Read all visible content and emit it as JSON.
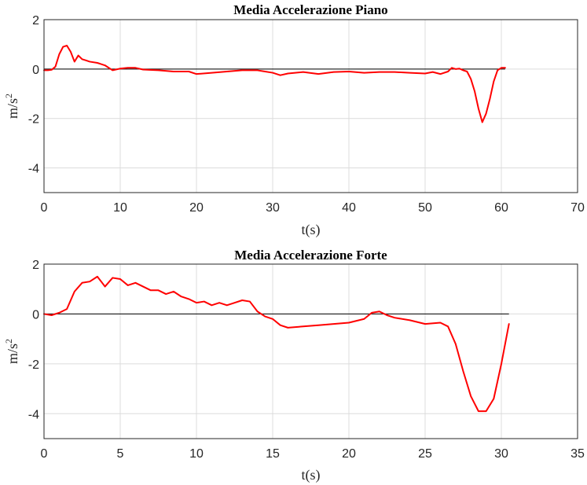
{
  "chart_data": [
    {
      "type": "line",
      "title": "Media Accelerazione Piano",
      "xlabel": "t(s)",
      "ylabel": "m/s",
      "ylabel_superscript": "2",
      "xlim": [
        0,
        70
      ],
      "ylim": [
        -5,
        2
      ],
      "xticks": [
        0,
        10,
        20,
        30,
        40,
        50,
        60,
        70
      ],
      "yticks": [
        -4,
        -2,
        0,
        2
      ],
      "grid": true,
      "reference_line": {
        "y": 0,
        "x_start": 0,
        "x_end": 60.5,
        "color": "#000000"
      },
      "series": [
        {
          "color": "#ff0000",
          "x": [
            0,
            0.5,
            1.0,
            1.5,
            2.0,
            2.5,
            3.0,
            3.5,
            4.0,
            4.5,
            5.0,
            5.5,
            6.0,
            7.0,
            8.0,
            9.0,
            10.0,
            11.0,
            12.0,
            13.0,
            15.0,
            17.0,
            19.0,
            20.0,
            22.0,
            24.0,
            26.0,
            27.0,
            28.0,
            29.0,
            30.0,
            31.0,
            32.0,
            34.0,
            36.0,
            38.0,
            40.0,
            42.0,
            44.0,
            46.0,
            48.0,
            50.0,
            51.0,
            52.0,
            53.0,
            53.5,
            54.0,
            54.5,
            55.0,
            55.5,
            56.0,
            56.5,
            57.0,
            57.5,
            58.0,
            58.5,
            59.0,
            59.5,
            60.0,
            60.5
          ],
          "y": [
            -0.05,
            -0.05,
            -0.03,
            0.1,
            0.6,
            0.9,
            0.95,
            0.7,
            0.3,
            0.55,
            0.4,
            0.35,
            0.3,
            0.25,
            0.15,
            -0.05,
            0.02,
            0.05,
            0.05,
            -0.02,
            -0.05,
            -0.1,
            -0.1,
            -0.2,
            -0.15,
            -0.1,
            -0.05,
            -0.05,
            -0.05,
            -0.1,
            -0.15,
            -0.25,
            -0.18,
            -0.12,
            -0.2,
            -0.12,
            -0.1,
            -0.15,
            -0.12,
            -0.12,
            -0.15,
            -0.18,
            -0.12,
            -0.2,
            -0.1,
            0.05,
            0.0,
            0.02,
            -0.05,
            -0.1,
            -0.4,
            -0.9,
            -1.6,
            -2.15,
            -1.8,
            -1.2,
            -0.5,
            -0.05,
            0.05,
            0.05
          ]
        }
      ]
    },
    {
      "type": "line",
      "title": "Media Accelerazione Forte",
      "xlabel": "t(s)",
      "ylabel": "m/s",
      "ylabel_superscript": "2",
      "xlim": [
        0,
        35
      ],
      "ylim": [
        -5,
        2
      ],
      "xticks": [
        0,
        5,
        10,
        15,
        20,
        25,
        30,
        35
      ],
      "yticks": [
        -4,
        -2,
        0,
        2
      ],
      "grid": true,
      "reference_line": {
        "y": 0,
        "x_start": 0,
        "x_end": 30.5,
        "color": "#000000"
      },
      "series": [
        {
          "color": "#ff0000",
          "x": [
            0,
            0.5,
            1.0,
            1.5,
            2.0,
            2.5,
            3.0,
            3.5,
            4.0,
            4.5,
            5.0,
            5.5,
            6.0,
            6.5,
            7.0,
            7.5,
            8.0,
            8.5,
            9.0,
            9.5,
            10.0,
            10.5,
            11.0,
            11.5,
            12.0,
            12.5,
            13.0,
            13.5,
            14.0,
            14.5,
            15.0,
            15.5,
            16.0,
            17.0,
            18.0,
            19.0,
            20.0,
            21.0,
            21.5,
            22.0,
            22.5,
            23.0,
            24.0,
            25.0,
            26.0,
            26.5,
            27.0,
            27.5,
            28.0,
            28.5,
            29.0,
            29.5,
            30.0,
            30.5
          ],
          "y": [
            0.0,
            -0.05,
            0.05,
            0.2,
            0.9,
            1.25,
            1.3,
            1.5,
            1.1,
            1.45,
            1.4,
            1.15,
            1.25,
            1.1,
            0.95,
            0.95,
            0.8,
            0.9,
            0.7,
            0.6,
            0.45,
            0.5,
            0.35,
            0.45,
            0.35,
            0.45,
            0.55,
            0.5,
            0.1,
            -0.1,
            -0.2,
            -0.45,
            -0.55,
            -0.5,
            -0.45,
            -0.4,
            -0.35,
            -0.2,
            0.05,
            0.1,
            -0.05,
            -0.15,
            -0.25,
            -0.4,
            -0.35,
            -0.5,
            -1.2,
            -2.3,
            -3.3,
            -3.9,
            -3.9,
            -3.4,
            -2.0,
            -0.4
          ]
        }
      ]
    }
  ]
}
